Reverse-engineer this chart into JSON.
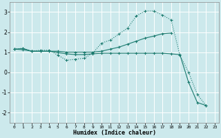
{
  "background_color": "#cce9ec",
  "grid_color": "#b8d8db",
  "line_color": "#1a7a6e",
  "xlabel": "Humidex (Indice chaleur)",
  "ylim": [
    -2.5,
    3.5
  ],
  "xlim": [
    -0.5,
    23.5
  ],
  "yticks": [
    -2,
    -1,
    0,
    1,
    2,
    3
  ],
  "xticks": [
    0,
    1,
    2,
    3,
    4,
    5,
    6,
    7,
    8,
    9,
    10,
    11,
    12,
    13,
    14,
    15,
    16,
    17,
    18,
    19,
    20,
    21,
    22,
    23
  ],
  "line1_x": [
    0,
    1,
    2,
    3,
    4,
    5,
    6,
    7,
    8,
    9,
    10,
    11,
    12,
    13,
    14,
    15,
    16,
    17,
    18,
    19,
    20,
    21,
    22
  ],
  "line1_y": [
    1.15,
    1.2,
    1.05,
    1.1,
    1.1,
    0.85,
    0.6,
    0.65,
    0.7,
    0.95,
    1.45,
    1.6,
    1.9,
    2.2,
    2.8,
    3.05,
    3.05,
    2.85,
    2.6,
    0.85,
    0.0,
    -1.1,
    -1.65
  ],
  "line2_x": [
    0,
    1,
    2,
    3,
    4,
    5,
    6,
    7,
    8,
    9,
    10,
    11,
    12,
    13,
    14,
    15,
    16,
    17,
    18
  ],
  "line2_y": [
    1.15,
    1.18,
    1.05,
    1.05,
    1.05,
    1.05,
    1.0,
    1.0,
    1.0,
    1.0,
    1.05,
    1.15,
    1.25,
    1.4,
    1.55,
    1.7,
    1.8,
    1.92,
    1.95
  ],
  "line3_x": [
    0,
    1,
    2,
    3,
    4,
    5,
    6,
    7,
    8,
    9,
    10,
    11,
    12,
    13,
    14,
    15,
    16,
    17,
    18,
    19,
    20,
    21,
    22
  ],
  "line3_y": [
    1.15,
    1.12,
    1.05,
    1.05,
    1.05,
    0.98,
    0.92,
    0.88,
    0.88,
    0.92,
    0.95,
    0.95,
    0.95,
    0.95,
    0.95,
    0.95,
    0.95,
    0.95,
    0.92,
    0.88,
    -0.5,
    -1.5,
    -1.65
  ]
}
